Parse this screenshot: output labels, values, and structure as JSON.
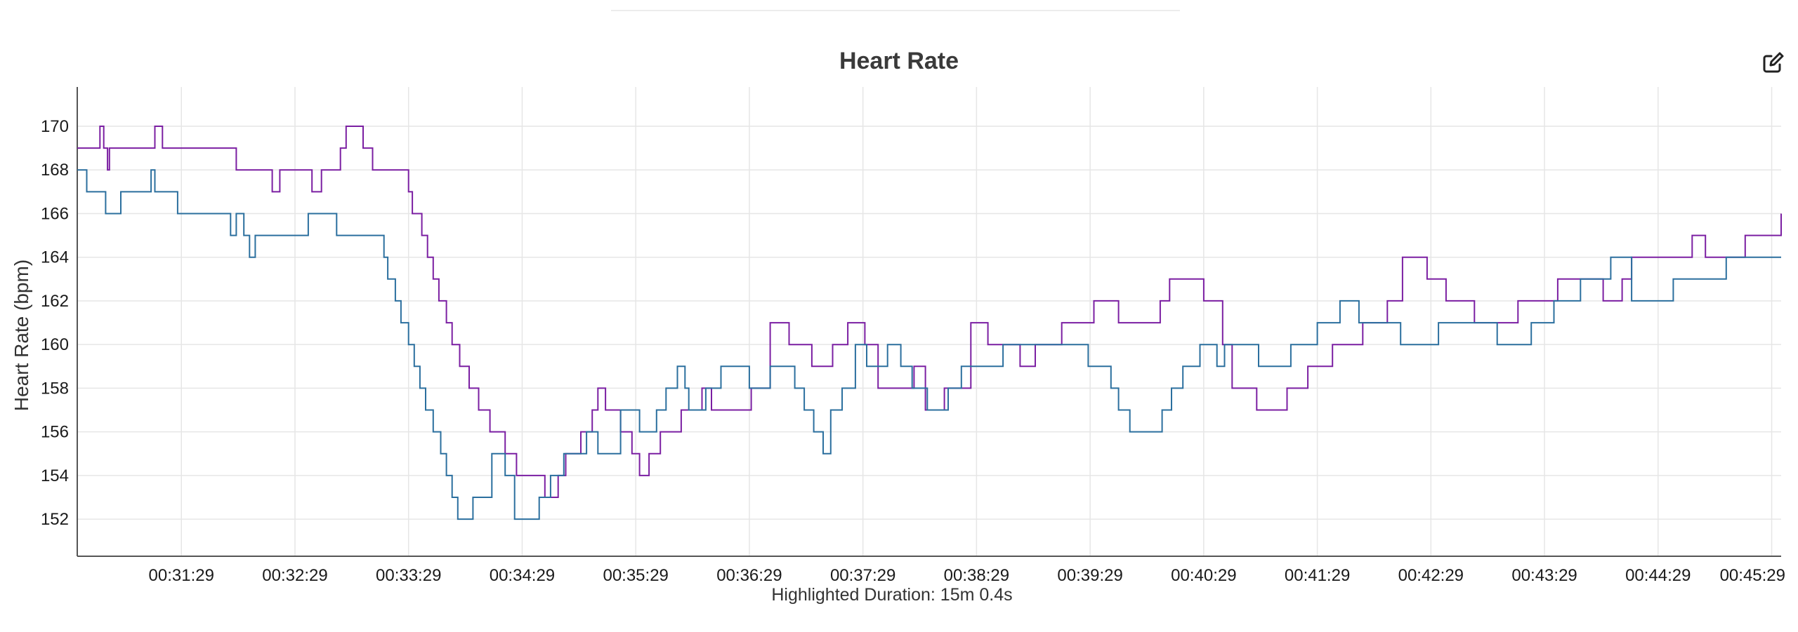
{
  "chart_data": {
    "type": "line",
    "title": "Heart Rate",
    "ylabel": "Heart Rate (bpm)",
    "xlabel": "",
    "ylim": [
      150.3,
      171.8
    ],
    "yticks": [
      152,
      154,
      156,
      158,
      160,
      162,
      164,
      166,
      168,
      170
    ],
    "xlim": [
      "00:30:34",
      "00:45:34"
    ],
    "x_tick_labels": [
      "00:31:29",
      "00:32:29",
      "00:33:29",
      "00:34:29",
      "00:35:29",
      "00:36:29",
      "00:37:29",
      "00:38:29",
      "00:39:29",
      "00:40:29",
      "00:41:29",
      "00:42:29",
      "00:43:29",
      "00:44:29",
      "00:45:29"
    ],
    "grid": true,
    "legend": "none",
    "series": [
      {
        "color": "#7b1fa2",
        "x": [
          "00:30:34",
          "00:30:46",
          "00:30:48",
          "00:30:50",
          "00:30:51",
          "00:30:53",
          "00:31:15",
          "00:31:19",
          "00:31:55",
          "00:31:58",
          "00:32:01",
          "00:32:17",
          "00:32:21",
          "00:32:34",
          "00:32:38",
          "00:32:43",
          "00:32:53",
          "00:32:56",
          "00:32:58",
          "00:33:05",
          "00:33:10",
          "00:33:23",
          "00:33:29",
          "00:33:31",
          "00:33:36",
          "00:33:39",
          "00:33:42",
          "00:33:45",
          "00:33:49",
          "00:33:52",
          "00:33:56",
          "00:34:01",
          "00:34:06",
          "00:34:12",
          "00:34:20",
          "00:34:26",
          "00:34:41",
          "00:34:48",
          "00:34:52",
          "00:35:00",
          "00:35:06",
          "00:35:09",
          "00:35:13",
          "00:35:17",
          "00:35:21",
          "00:35:27",
          "00:35:31",
          "00:35:36",
          "00:35:42",
          "00:35:53",
          "00:35:56",
          "00:36:04",
          "00:36:09",
          "00:36:19",
          "00:36:30",
          "00:36:40",
          "00:36:50",
          "00:36:57",
          "00:37:02",
          "00:37:09",
          "00:37:13",
          "00:37:21",
          "00:37:30",
          "00:37:37",
          "00:37:56",
          "00:38:02",
          "00:38:12",
          "00:38:26",
          "00:38:35",
          "00:38:45",
          "00:38:52",
          "00:39:00",
          "00:39:14",
          "00:39:19",
          "00:39:31",
          "00:39:44",
          "00:39:51",
          "00:40:06",
          "00:40:11",
          "00:40:26",
          "00:40:29",
          "00:40:39",
          "00:40:44",
          "00:40:57",
          "00:41:13",
          "00:41:20",
          "00:41:24",
          "00:41:37",
          "00:41:42",
          "00:41:53",
          "00:42:06",
          "00:42:14",
          "00:42:27",
          "00:42:37",
          "00:42:52",
          "00:43:03",
          "00:43:15",
          "00:43:20",
          "00:43:36",
          "00:43:44",
          "00:44:00",
          "00:44:10",
          "00:44:15",
          "00:44:30",
          "00:44:47",
          "00:44:54",
          "00:45:15",
          "00:45:34"
        ],
        "y": [
          169,
          170,
          169,
          168,
          169,
          169,
          170,
          169,
          169,
          168,
          168,
          167,
          168,
          168,
          167,
          168,
          169,
          170,
          170,
          169,
          168,
          168,
          167,
          166,
          165,
          164,
          163,
          162,
          161,
          160,
          159,
          158,
          157,
          156,
          155,
          154,
          153,
          154,
          155,
          156,
          157,
          158,
          157,
          157,
          156,
          155,
          154,
          155,
          156,
          157,
          157,
          158,
          157,
          157,
          158,
          161,
          160,
          160,
          159,
          159,
          160,
          161,
          160,
          158,
          159,
          157,
          158,
          161,
          160,
          160,
          159,
          160,
          161,
          161,
          162,
          161,
          161,
          162,
          163,
          163,
          162,
          160,
          158,
          157,
          158,
          158,
          159,
          160,
          160,
          161,
          162,
          164,
          163,
          162,
          161,
          161,
          162,
          162,
          163,
          163,
          162,
          163,
          164,
          164,
          165,
          164,
          165,
          166
        ]
      },
      {
        "color": "#2b6f9e",
        "x": [
          "00:30:34",
          "00:30:39",
          "00:30:45",
          "00:30:49",
          "00:30:52",
          "00:30:57",
          "00:31:08",
          "00:31:13",
          "00:31:15",
          "00:31:27",
          "00:31:31",
          "00:31:42",
          "00:31:47",
          "00:31:55",
          "00:31:58",
          "00:32:02",
          "00:32:05",
          "00:32:08",
          "00:32:13",
          "00:32:36",
          "00:32:39",
          "00:32:41",
          "00:32:44",
          "00:32:47",
          "00:32:51",
          "00:33:16",
          "00:33:18",
          "00:33:22",
          "00:33:25",
          "00:33:29",
          "00:33:32",
          "00:33:35",
          "00:33:38",
          "00:33:42",
          "00:33:46",
          "00:33:49",
          "00:33:52",
          "00:33:55",
          "00:33:59",
          "00:34:03",
          "00:34:13",
          "00:34:20",
          "00:34:25",
          "00:34:38",
          "00:34:44",
          "00:34:51",
          "00:35:03",
          "00:35:09",
          "00:35:13",
          "00:35:21",
          "00:35:31",
          "00:35:33",
          "00:35:40",
          "00:35:45",
          "00:35:51",
          "00:35:55",
          "00:35:57",
          "00:36:03",
          "00:36:06",
          "00:36:14",
          "00:36:22",
          "00:36:29",
          "00:36:40",
          "00:36:53",
          "00:36:58",
          "00:37:03",
          "00:37:08",
          "00:37:12",
          "00:37:18",
          "00:37:25",
          "00:37:31",
          "00:37:42",
          "00:37:49",
          "00:37:55",
          "00:38:03",
          "00:38:14",
          "00:38:21",
          "00:38:33",
          "00:38:43",
          "00:38:58",
          "00:39:06",
          "00:39:13",
          "00:39:28",
          "00:39:40",
          "00:39:44",
          "00:39:50",
          "00:40:01",
          "00:40:07",
          "00:40:12",
          "00:40:18",
          "00:40:27",
          "00:40:36",
          "00:40:40",
          "00:40:58",
          "00:41:15",
          "00:41:29",
          "00:41:41",
          "00:41:51",
          "00:42:13",
          "00:42:21",
          "00:42:33",
          "00:42:43",
          "00:43:04",
          "00:43:22",
          "00:43:34",
          "00:43:48",
          "00:44:04",
          "00:44:15",
          "00:44:37",
          "00:44:48",
          "00:45:05",
          "00:45:34"
        ],
        "y": [
          168,
          167,
          167,
          166,
          166,
          167,
          167,
          168,
          167,
          166,
          166,
          166,
          166,
          165,
          166,
          165,
          164,
          165,
          165,
          166,
          166,
          166,
          166,
          166,
          165,
          164,
          163,
          162,
          161,
          160,
          159,
          158,
          157,
          156,
          155,
          154,
          153,
          152,
          152,
          153,
          155,
          154,
          152,
          153,
          154,
          155,
          156,
          155,
          155,
          157,
          156,
          156,
          157,
          158,
          159,
          158,
          157,
          157,
          158,
          159,
          159,
          158,
          159,
          158,
          157,
          156,
          155,
          157,
          158,
          160,
          159,
          160,
          159,
          158,
          157,
          158,
          159,
          159,
          160,
          160,
          160,
          160,
          159,
          158,
          157,
          156,
          156,
          157,
          158,
          159,
          160,
          159,
          160,
          159,
          160,
          161,
          162,
          161,
          160,
          160,
          161,
          161,
          160,
          161,
          162,
          163,
          164,
          162,
          163,
          163,
          164,
          164
        ]
      }
    ],
    "annotations": [
      "Highlighted Duration: 15m 0.4s"
    ]
  }
}
